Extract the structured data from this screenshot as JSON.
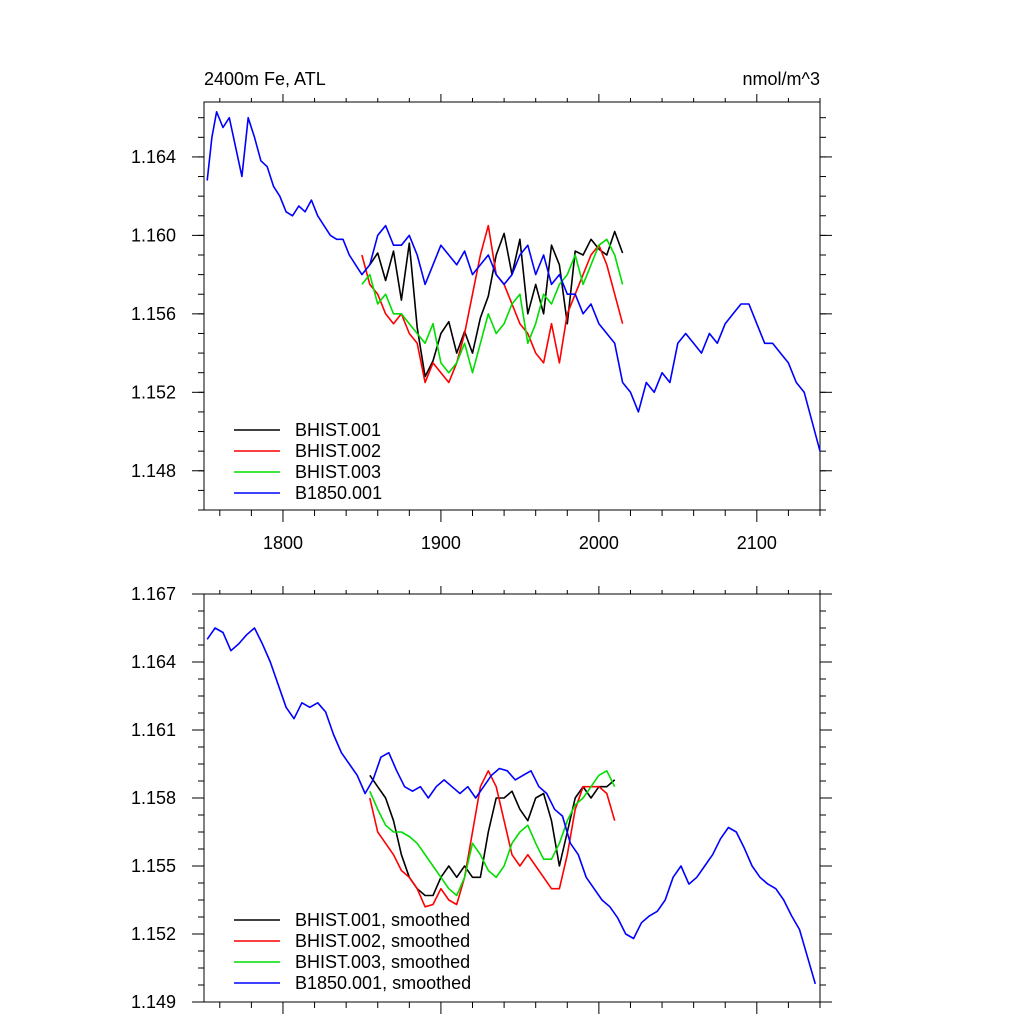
{
  "colors": {
    "BHIST.001": "#000000",
    "BHIST.002": "#ff0000",
    "BHIST.003": "#00dd00",
    "B1850.001": "#0000ff"
  },
  "chart_data": [
    {
      "type": "line",
      "title": "2400m Fe, ATL",
      "units": "nmol/m^3",
      "xlim": [
        1750,
        2140
      ],
      "ylim": [
        1.146,
        1.1668
      ],
      "x_ticks": [
        1800,
        1900,
        2000,
        2100
      ],
      "x_tick_labels": [
        "1800",
        "1900",
        "2000",
        "2100"
      ],
      "y_ticks": [
        1.148,
        1.152,
        1.156,
        1.16,
        1.164
      ],
      "y_tick_labels": [
        "1.148",
        "1.152",
        "1.156",
        "1.160",
        "1.164"
      ],
      "legend": {
        "position": "bottom-left",
        "entries": [
          "BHIST.001",
          "BHIST.002",
          "BHIST.003",
          "B1850.001"
        ]
      },
      "series": [
        {
          "name": "BHIST.001",
          "x": [
            1855,
            1860,
            1865,
            1870,
            1875,
            1880,
            1885,
            1890,
            1895,
            1900,
            1905,
            1910,
            1915,
            1920,
            1925,
            1930,
            1935,
            1940,
            1945,
            1950,
            1955,
            1960,
            1965,
            1970,
            1975,
            1980,
            1985,
            1990,
            1995,
            2000,
            2005,
            2010,
            2015
          ],
          "y": [
            1.1585,
            1.1591,
            1.1577,
            1.1592,
            1.1567,
            1.1596,
            1.1553,
            1.1528,
            1.1536,
            1.155,
            1.1556,
            1.154,
            1.1551,
            1.154,
            1.1558,
            1.1569,
            1.159,
            1.1601,
            1.158,
            1.1598,
            1.156,
            1.1575,
            1.156,
            1.1595,
            1.1585,
            1.1555,
            1.1592,
            1.159,
            1.1598,
            1.1593,
            1.159,
            1.1602,
            1.1591
          ]
        },
        {
          "name": "BHIST.002",
          "x": [
            1850,
            1855,
            1860,
            1865,
            1870,
            1875,
            1880,
            1885,
            1890,
            1895,
            1900,
            1905,
            1910,
            1915,
            1920,
            1925,
            1930,
            1935,
            1940,
            1945,
            1950,
            1955,
            1960,
            1965,
            1970,
            1975,
            1980,
            1985,
            1990,
            1995,
            2000,
            2005,
            2010,
            2015
          ],
          "y": [
            1.159,
            1.1575,
            1.157,
            1.156,
            1.1555,
            1.156,
            1.155,
            1.1545,
            1.1525,
            1.1535,
            1.153,
            1.1525,
            1.1535,
            1.155,
            1.157,
            1.159,
            1.1605,
            1.158,
            1.1575,
            1.1565,
            1.1555,
            1.155,
            1.154,
            1.1535,
            1.1555,
            1.1535,
            1.156,
            1.157,
            1.158,
            1.159,
            1.1595,
            1.1585,
            1.157,
            1.1555
          ]
        },
        {
          "name": "BHIST.003",
          "x": [
            1850,
            1855,
            1860,
            1865,
            1870,
            1875,
            1880,
            1885,
            1890,
            1895,
            1900,
            1905,
            1910,
            1915,
            1920,
            1925,
            1930,
            1935,
            1940,
            1945,
            1950,
            1955,
            1960,
            1965,
            1970,
            1975,
            1980,
            1985,
            1990,
            1995,
            2000,
            2005,
            2010,
            2015
          ],
          "y": [
            1.1575,
            1.158,
            1.1565,
            1.157,
            1.156,
            1.156,
            1.1555,
            1.155,
            1.1545,
            1.1555,
            1.1535,
            1.153,
            1.1535,
            1.1545,
            1.153,
            1.1545,
            1.156,
            1.155,
            1.1555,
            1.1565,
            1.157,
            1.1545,
            1.1555,
            1.157,
            1.1565,
            1.1575,
            1.158,
            1.159,
            1.1575,
            1.1585,
            1.1595,
            1.1598,
            1.159,
            1.1575
          ]
        },
        {
          "name": "B1850.001",
          "x": [
            1752,
            1755,
            1758,
            1762,
            1766,
            1770,
            1774,
            1778,
            1782,
            1786,
            1790,
            1794,
            1798,
            1802,
            1806,
            1810,
            1814,
            1818,
            1822,
            1826,
            1830,
            1834,
            1838,
            1842,
            1846,
            1850,
            1855,
            1860,
            1865,
            1870,
            1875,
            1880,
            1885,
            1890,
            1895,
            1900,
            1905,
            1910,
            1915,
            1920,
            1925,
            1930,
            1935,
            1940,
            1945,
            1950,
            1955,
            1960,
            1965,
            1970,
            1975,
            1980,
            1985,
            1990,
            1995,
            2000,
            2005,
            2010,
            2015,
            2020,
            2025,
            2030,
            2035,
            2040,
            2045,
            2050,
            2055,
            2060,
            2065,
            2070,
            2075,
            2080,
            2085,
            2090,
            2095,
            2100,
            2105,
            2110,
            2115,
            2120,
            2125,
            2130,
            2135,
            2140
          ],
          "y": [
            1.1628,
            1.165,
            1.1663,
            1.1655,
            1.166,
            1.1645,
            1.163,
            1.166,
            1.165,
            1.1638,
            1.1635,
            1.1625,
            1.162,
            1.1612,
            1.161,
            1.1615,
            1.1612,
            1.1618,
            1.161,
            1.1605,
            1.16,
            1.1598,
            1.1598,
            1.159,
            1.1585,
            1.158,
            1.1585,
            1.16,
            1.1605,
            1.1595,
            1.1595,
            1.16,
            1.159,
            1.1575,
            1.1585,
            1.1595,
            1.159,
            1.1585,
            1.1592,
            1.158,
            1.1585,
            1.159,
            1.158,
            1.1575,
            1.158,
            1.159,
            1.1595,
            1.158,
            1.159,
            1.1575,
            1.158,
            1.157,
            1.157,
            1.156,
            1.1565,
            1.1555,
            1.155,
            1.1545,
            1.1525,
            1.152,
            1.151,
            1.1525,
            1.152,
            1.153,
            1.1525,
            1.1545,
            1.155,
            1.1545,
            1.154,
            1.155,
            1.1545,
            1.1555,
            1.156,
            1.1565,
            1.1565,
            1.1555,
            1.1545,
            1.1545,
            1.154,
            1.1535,
            1.1525,
            1.152,
            1.1505,
            1.149
          ]
        }
      ]
    },
    {
      "type": "line",
      "xlim": [
        1750,
        2140
      ],
      "ylim": [
        1.149,
        1.167
      ],
      "x_ticks": [
        1800,
        1900,
        2000,
        2100
      ],
      "y_ticks": [
        1.149,
        1.152,
        1.155,
        1.158,
        1.161,
        1.164,
        1.167
      ],
      "y_tick_labels": [
        "1.149",
        "1.152",
        "1.155",
        "1.158",
        "1.161",
        "1.164",
        "1.167"
      ],
      "legend": {
        "position": "bottom-left",
        "entries": [
          "BHIST.001, smoothed",
          "BHIST.002, smoothed",
          "BHIST.003, smoothed",
          "B1850.001, smoothed"
        ]
      },
      "series": [
        {
          "name": "BHIST.001, smoothed",
          "x": [
            1855,
            1860,
            1865,
            1870,
            1875,
            1880,
            1885,
            1890,
            1895,
            1900,
            1905,
            1910,
            1915,
            1920,
            1925,
            1930,
            1935,
            1940,
            1945,
            1950,
            1955,
            1960,
            1965,
            1970,
            1975,
            1980,
            1985,
            1990,
            1995,
            2000,
            2005,
            2010
          ],
          "y": [
            1.159,
            1.1585,
            1.158,
            1.157,
            1.1555,
            1.1545,
            1.154,
            1.1537,
            1.1537,
            1.1545,
            1.155,
            1.1545,
            1.155,
            1.1545,
            1.1545,
            1.1565,
            1.158,
            1.158,
            1.1583,
            1.1575,
            1.157,
            1.158,
            1.1582,
            1.157,
            1.155,
            1.1565,
            1.158,
            1.1585,
            1.158,
            1.1585,
            1.1585,
            1.1588
          ]
        },
        {
          "name": "BHIST.002, smoothed",
          "x": [
            1855,
            1860,
            1865,
            1870,
            1875,
            1880,
            1885,
            1890,
            1895,
            1900,
            1905,
            1910,
            1915,
            1920,
            1925,
            1930,
            1935,
            1940,
            1945,
            1950,
            1955,
            1960,
            1965,
            1970,
            1975,
            1980,
            1985,
            1990,
            1995,
            2000,
            2005,
            2010
          ],
          "y": [
            1.158,
            1.1565,
            1.156,
            1.1555,
            1.1548,
            1.1545,
            1.154,
            1.1532,
            1.1533,
            1.154,
            1.1535,
            1.1533,
            1.1545,
            1.1565,
            1.1585,
            1.1592,
            1.1585,
            1.157,
            1.1555,
            1.155,
            1.1555,
            1.155,
            1.1545,
            1.154,
            1.154,
            1.1555,
            1.1575,
            1.1585,
            1.1585,
            1.1585,
            1.1582,
            1.157
          ]
        },
        {
          "name": "BHIST.003, smoothed",
          "x": [
            1855,
            1860,
            1865,
            1870,
            1875,
            1880,
            1885,
            1890,
            1895,
            1900,
            1905,
            1910,
            1915,
            1920,
            1925,
            1930,
            1935,
            1940,
            1945,
            1950,
            1955,
            1960,
            1965,
            1970,
            1975,
            1980,
            1985,
            1990,
            1995,
            2000,
            2005,
            2010
          ],
          "y": [
            1.1583,
            1.1575,
            1.1568,
            1.1565,
            1.1565,
            1.1563,
            1.156,
            1.1555,
            1.155,
            1.1545,
            1.154,
            1.1537,
            1.1545,
            1.156,
            1.1555,
            1.1548,
            1.1545,
            1.155,
            1.156,
            1.1565,
            1.1568,
            1.156,
            1.1553,
            1.1553,
            1.156,
            1.157,
            1.1577,
            1.158,
            1.1585,
            1.159,
            1.1592,
            1.1585
          ]
        },
        {
          "name": "B1850.001, smoothed",
          "x": [
            1752,
            1757,
            1762,
            1767,
            1772,
            1777,
            1782,
            1787,
            1792,
            1797,
            1802,
            1807,
            1812,
            1817,
            1822,
            1827,
            1832,
            1837,
            1842,
            1847,
            1852,
            1857,
            1862,
            1867,
            1872,
            1877,
            1882,
            1887,
            1892,
            1897,
            1902,
            1907,
            1912,
            1917,
            1922,
            1927,
            1932,
            1937,
            1942,
            1947,
            1952,
            1957,
            1962,
            1967,
            1972,
            1977,
            1982,
            1987,
            1992,
            1997,
            2002,
            2007,
            2012,
            2017,
            2022,
            2027,
            2032,
            2037,
            2042,
            2047,
            2052,
            2057,
            2062,
            2067,
            2072,
            2077,
            2082,
            2087,
            2092,
            2097,
            2102,
            2107,
            2112,
            2117,
            2122,
            2127,
            2132,
            2137
          ],
          "y": [
            1.165,
            1.1655,
            1.1653,
            1.1645,
            1.1648,
            1.1652,
            1.1655,
            1.1648,
            1.164,
            1.163,
            1.162,
            1.1615,
            1.1622,
            1.162,
            1.1622,
            1.1618,
            1.1608,
            1.16,
            1.1595,
            1.159,
            1.1582,
            1.1588,
            1.1598,
            1.16,
            1.1592,
            1.1585,
            1.1583,
            1.1585,
            1.158,
            1.1585,
            1.1588,
            1.1585,
            1.1582,
            1.1585,
            1.158,
            1.1585,
            1.159,
            1.1593,
            1.1592,
            1.1588,
            1.159,
            1.1592,
            1.1585,
            1.1582,
            1.1575,
            1.1572,
            1.156,
            1.1555,
            1.1545,
            1.154,
            1.1535,
            1.1532,
            1.1527,
            1.152,
            1.1518,
            1.1525,
            1.1528,
            1.153,
            1.1535,
            1.1545,
            1.155,
            1.1542,
            1.1545,
            1.155,
            1.1555,
            1.1562,
            1.1567,
            1.1565,
            1.1558,
            1.155,
            1.1545,
            1.1542,
            1.154,
            1.1535,
            1.1528,
            1.1522,
            1.151,
            1.1498
          ]
        }
      ]
    }
  ]
}
